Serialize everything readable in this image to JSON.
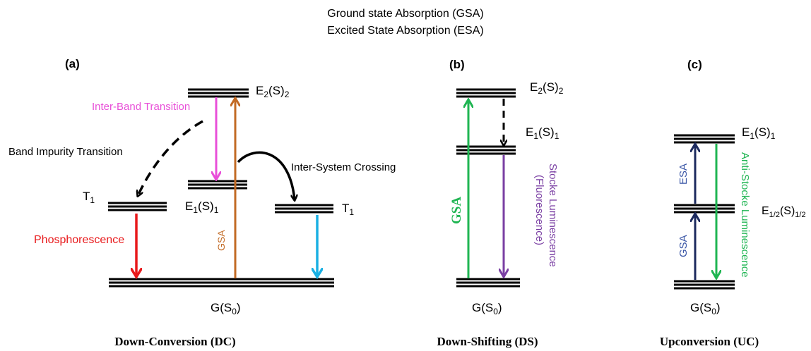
{
  "legend": {
    "line1": "Ground state Absorption (GSA)",
    "line2": "Excited State Absorption (ESA)"
  },
  "panel_a": {
    "label": "(a)",
    "caption": "Down-Conversion (DC)",
    "levels": {
      "e2": {
        "base": "E",
        "sub1": "2",
        "mid": "(S)",
        "sub2": "2"
      },
      "e1": {
        "base": "E",
        "sub1": "1",
        "mid": "(S)",
        "sub2": "1"
      },
      "t1_left": {
        "base": "T",
        "sub": "1"
      },
      "t1_right": {
        "base": "T",
        "sub": "1"
      },
      "g": {
        "base": "G(S",
        "sub": "0",
        "close": ")"
      }
    },
    "transitions": {
      "inter_band": {
        "label": "Inter-Band Transition",
        "color": "#e84fd8"
      },
      "band_impurity": {
        "label": "Band Impurity Transition",
        "color": "#000000"
      },
      "inter_system": {
        "label": "Inter-System Crossing",
        "color": "#000000"
      },
      "phosphorescence": {
        "label": "Phosphorescence",
        "color": "#e8191b"
      },
      "gsa": {
        "label": "GSA",
        "color": "#c26a24"
      },
      "t1_emission": {
        "color": "#1ab0e3"
      }
    }
  },
  "panel_b": {
    "label": "(b)",
    "caption": "Down-Shifting (DS)",
    "levels": {
      "e2": {
        "base": "E",
        "sub1": "2",
        "mid": "(S)",
        "sub2": "2"
      },
      "e1": {
        "base": "E",
        "sub1": "1",
        "mid": "(S)",
        "sub2": "1"
      },
      "g": {
        "base": "G(S",
        "sub": "0",
        "close": ")"
      }
    },
    "transitions": {
      "gsa": {
        "label": "GSA",
        "color": "#1fb552"
      },
      "luminescence": {
        "label1": "Stocke Luminescence",
        "label2": "(Fluorescence)",
        "color": "#7a3fa3"
      },
      "relax": {
        "color": "#000000"
      }
    }
  },
  "panel_c": {
    "label": "(c)",
    "caption": "Upconversion (UC)",
    "levels": {
      "e1": {
        "base": "E",
        "sub1": "1",
        "mid": "(S)",
        "sub2": "1"
      },
      "e_half": {
        "base": "E",
        "sub1": "1/2",
        "mid": "(S)",
        "sub2": "1/2"
      },
      "g": {
        "base": "G(S",
        "sub": "0",
        "close": ")"
      }
    },
    "transitions": {
      "gsa": {
        "label": "GSA",
        "color": "#3a56a6",
        "arrow_color": "#1c2a5e"
      },
      "esa": {
        "label": "ESA",
        "color": "#3a56a6",
        "arrow_color": "#1c2a5e"
      },
      "emission": {
        "label": "Anti-Stocke Luminescence",
        "color": "#1fb552"
      }
    }
  }
}
